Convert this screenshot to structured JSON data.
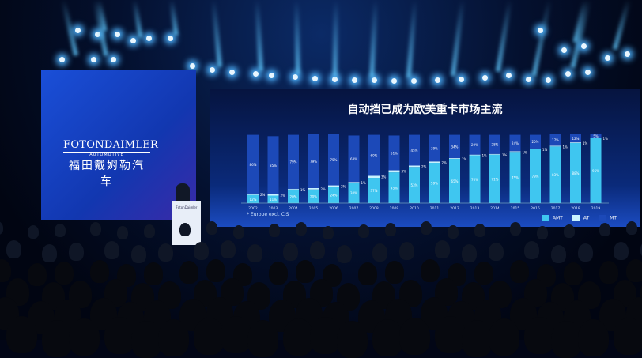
{
  "left_screen": {
    "logo_en": "FOTONDAIMLER",
    "logo_sub": "AUTOMOTIVE",
    "logo_cn": "福田戴姆勒汽车"
  },
  "podium": {
    "logo_text": "FotonDaimler"
  },
  "main_screen": {
    "title": "自动挡已成为欧美重卡市场主流",
    "note": "* Europe excl. CIS"
  },
  "chart_data": {
    "type": "bar",
    "stacked": true,
    "categories": [
      "2002",
      "2003",
      "2004",
      "2005",
      "2006",
      "2007",
      "2008",
      "2009",
      "2010",
      "2011",
      "2012",
      "2013",
      "2014",
      "2015",
      "2016",
      "2017",
      "2018",
      "2019"
    ],
    "series": [
      {
        "name": "AMT",
        "color": "#3fc6f0",
        "values": [
          12,
          11,
          20,
          20,
          24,
          30,
          37,
          45,
          53,
          59,
          65,
          70,
          71,
          75,
          79,
          83,
          88,
          95
        ]
      },
      {
        "name": "AT",
        "color": "#c8f2ff",
        "values": [
          2,
          2,
          1,
          2,
          2,
          1,
          3,
          3,
          2,
          2,
          1,
          1,
          1,
          1,
          1,
          1,
          1,
          1
        ]
      },
      {
        "name": "MT",
        "color": "#1c49b8",
        "values": [
          86,
          85,
          79,
          79,
          75,
          68,
          60,
          51,
          45,
          39,
          34,
          29,
          28,
          24,
          20,
          17,
          12,
          5
        ]
      }
    ],
    "ylim": [
      0,
      100
    ],
    "legend": "bottom-right"
  }
}
